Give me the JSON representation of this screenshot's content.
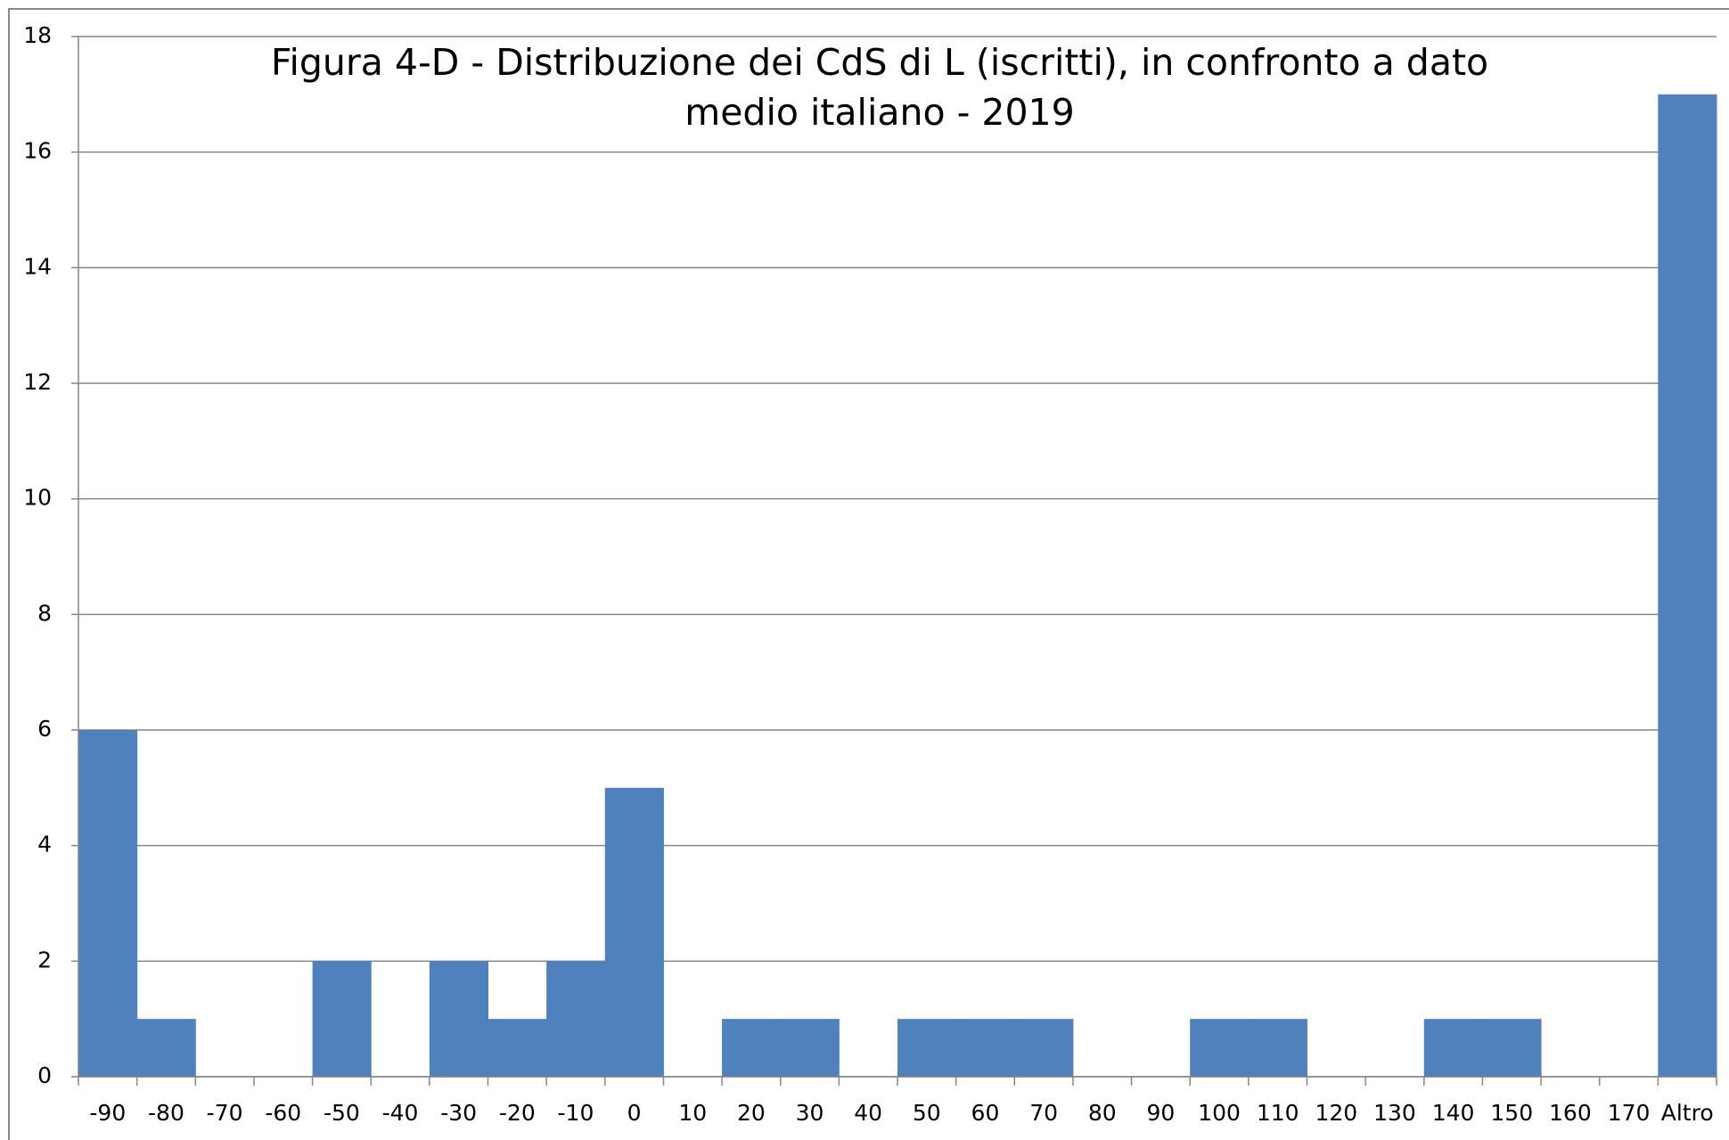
{
  "chart_data": {
    "type": "bar",
    "title": "Figura 4-D - Distribuzione dei CdS di L (iscritti), in confronto a dato medio italiano - 2019",
    "categories": [
      "-90",
      "-80",
      "-70",
      "-60",
      "-50",
      "-40",
      "-30",
      "-20",
      "-10",
      "0",
      "10",
      "20",
      "30",
      "40",
      "50",
      "60",
      "70",
      "80",
      "90",
      "100",
      "110",
      "120",
      "130",
      "140",
      "150",
      "160",
      "170",
      "Altro"
    ],
    "values": [
      6,
      1,
      0,
      0,
      2,
      0,
      2,
      1,
      2,
      5,
      0,
      1,
      1,
      0,
      1,
      1,
      1,
      0,
      0,
      1,
      1,
      0,
      0,
      1,
      1,
      0,
      0,
      17
    ],
    "color": "#4f81bd",
    "ylim": [
      0,
      18
    ],
    "yticks": [
      0,
      2,
      4,
      6,
      8,
      10,
      12,
      14,
      16,
      18
    ],
    "grid": true
  }
}
